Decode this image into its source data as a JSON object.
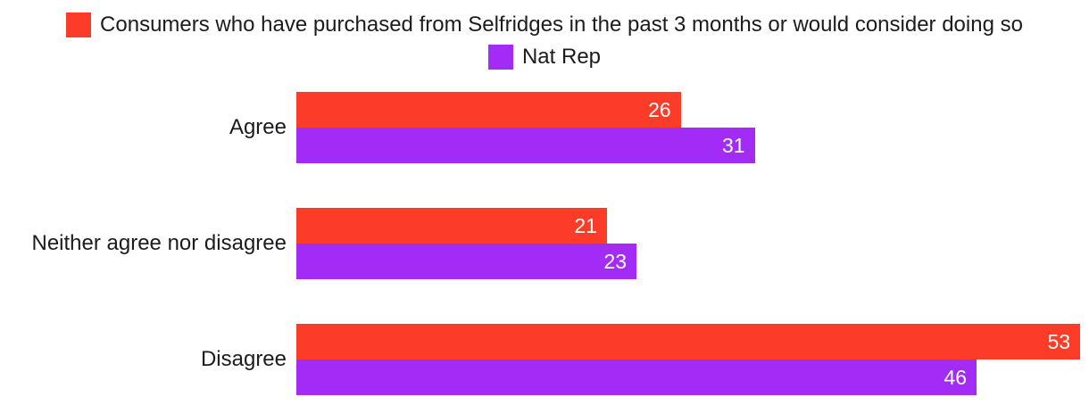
{
  "colors": {
    "background": "#ffffff",
    "text": "#1c1c1e",
    "series_red": "#fc3c28",
    "series_purple": "#a22bf5",
    "value_label": "#ffffff"
  },
  "legend": {
    "items": [
      {
        "label": "Consumers who have purchased from Selfridges in the past 3 months or would consider doing so",
        "color": "#fc3c28"
      },
      {
        "label": "Nat Rep",
        "color": "#a22bf5"
      }
    ]
  },
  "chart_data": {
    "type": "bar",
    "orientation": "horizontal",
    "title": "",
    "xlabel": "",
    "ylabel": "",
    "categories": [
      "Agree",
      "Neither agree nor disagree",
      "Disagree"
    ],
    "series": [
      {
        "name": "Consumers who have purchased from Selfridges in the past 3 months or would consider doing so",
        "color": "#fc3c28",
        "values": [
          26,
          21,
          53
        ]
      },
      {
        "name": "Nat Rep",
        "color": "#a22bf5",
        "values": [
          31,
          23,
          46
        ]
      }
    ],
    "xlim": [
      0,
      53.6
    ],
    "grid": false,
    "axes_shown": false,
    "value_labels_shown": true,
    "value_label_position": "inside-end",
    "legend_position": "top-center"
  }
}
